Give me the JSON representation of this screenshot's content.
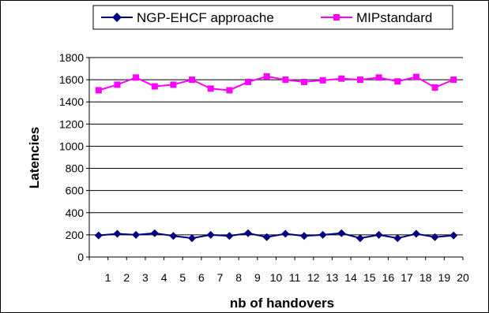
{
  "chart_data": {
    "type": "line",
    "title": "",
    "xlabel": "nb of handovers",
    "ylabel": "Latencies",
    "x": [
      1,
      2,
      3,
      4,
      5,
      6,
      7,
      8,
      9,
      10,
      11,
      12,
      13,
      14,
      15,
      16,
      17,
      18,
      19,
      20
    ],
    "ylim": [
      0,
      1800
    ],
    "yticks": [
      0,
      200,
      400,
      600,
      800,
      1000,
      1200,
      1400,
      1600,
      1800
    ],
    "grid": "horizontal",
    "legend_position": "top",
    "series": [
      {
        "name": "NGP-EHCF approache",
        "color": "#000080",
        "marker": "diamond",
        "values": [
          195,
          210,
          200,
          215,
          190,
          170,
          200,
          190,
          215,
          180,
          210,
          190,
          200,
          215,
          170,
          200,
          170,
          210,
          180,
          195
        ]
      },
      {
        "name": "MIPstandard",
        "color": "#ff00ff",
        "marker": "square",
        "values": [
          1505,
          1555,
          1620,
          1540,
          1555,
          1600,
          1520,
          1505,
          1580,
          1630,
          1600,
          1580,
          1595,
          1610,
          1600,
          1620,
          1585,
          1625,
          1530,
          1600
        ]
      }
    ]
  }
}
